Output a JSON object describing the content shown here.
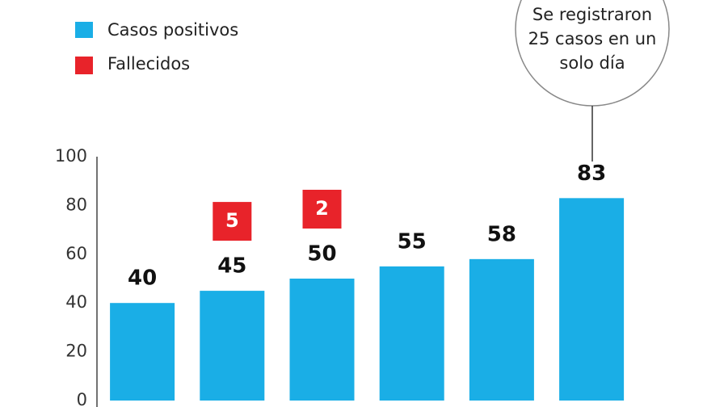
{
  "chart_data": {
    "type": "bar",
    "categories": [
      null,
      null,
      null,
      null,
      null,
      null
    ],
    "series": [
      {
        "name": "Casos positivos",
        "color": "#1aaee6",
        "values": [
          40,
          45,
          50,
          55,
          58,
          83
        ]
      },
      {
        "name": "Fallecidos",
        "color": "#e8232a",
        "values": [
          null,
          5,
          2,
          null,
          null,
          null
        ]
      }
    ],
    "ylim": [
      0,
      100
    ],
    "yticks": [
      0,
      20,
      40,
      60,
      80,
      100
    ],
    "grid": false,
    "annotation": "Se registraron 25 casos en un solo día"
  }
}
